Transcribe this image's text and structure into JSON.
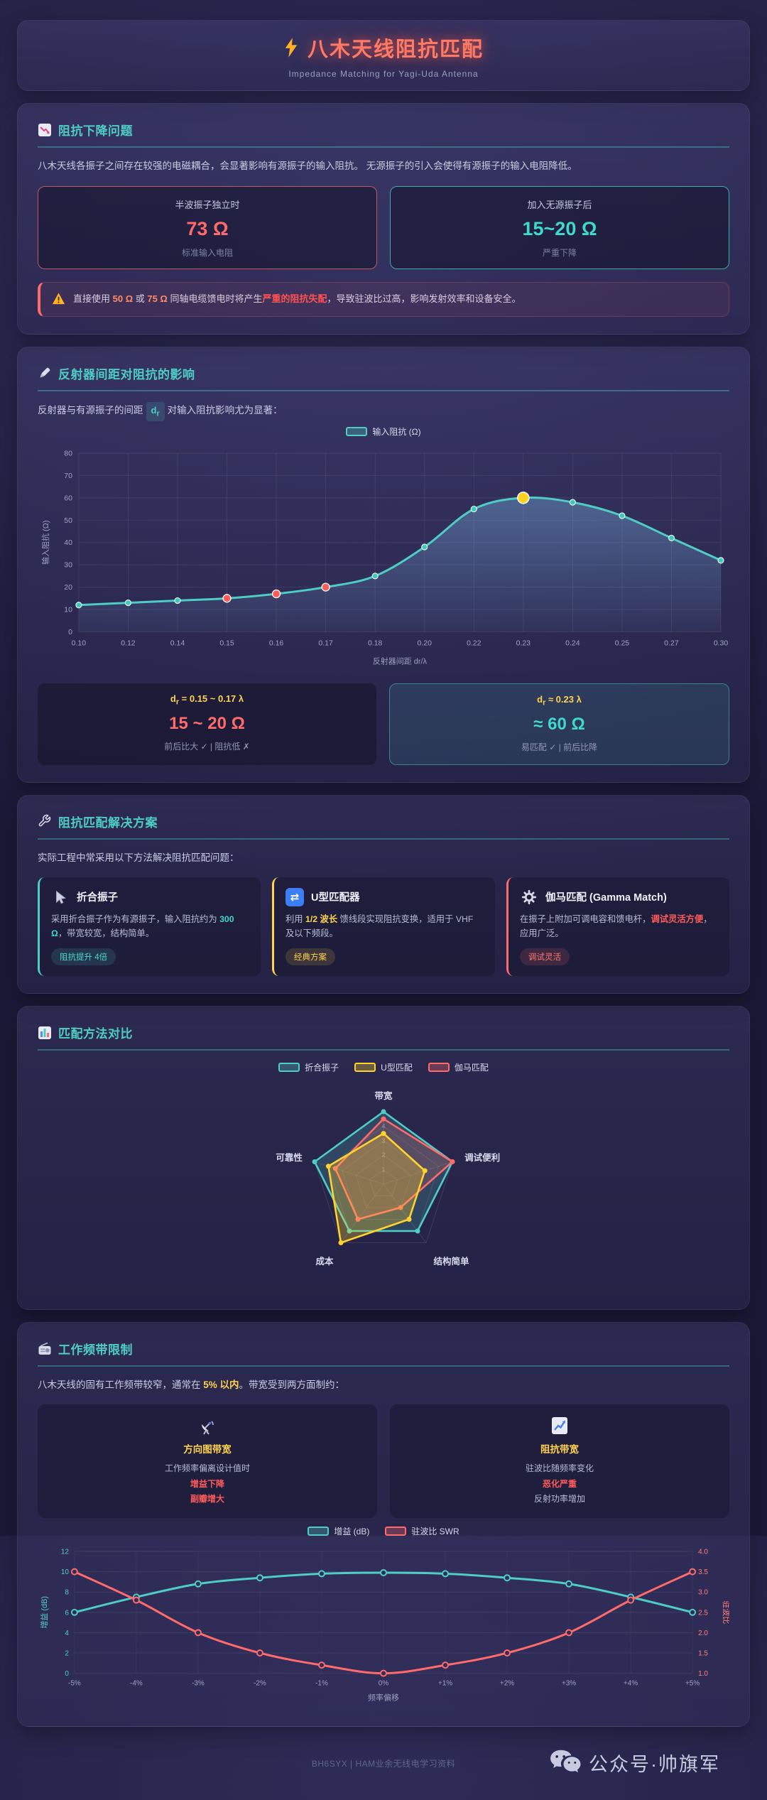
{
  "palette": {
    "teal": "#4ecdc4",
    "red": "#ff6b6b",
    "yellow": "#ffd34d",
    "orange": "#ff9f43",
    "blue": "#3d7ef5",
    "title": "#ff7a66"
  },
  "header": {
    "title": "八木天线阻抗匹配",
    "subtitle": "Impedance Matching for Yagi-Uda Antenna"
  },
  "section1": {
    "title": "阻抗下降问题",
    "intro": "八木天线各振子之间存在较强的电磁耦合，会显著影响有源振子的输入阻抗。 无源振子的引入会使得有源振子的输入电阻降低。",
    "stats": [
      {
        "label": "半波振子独立时",
        "value": "73 Ω",
        "note": "标准输入电阻"
      },
      {
        "label": "加入无源振子后",
        "value": "15~20 Ω",
        "note": "严重下降"
      }
    ],
    "warning": {
      "pre": "直接使用 ",
      "v1": "50 Ω",
      "mid1": " 或 ",
      "v2": "75 Ω",
      "mid2": " 同轴电缆馈电时将产生",
      "strong": "严重的阻抗失配",
      "post": "，导致驻波比过高，影响发射效率和设备安全。"
    }
  },
  "section2": {
    "title": "反射器间距对阻抗的影响",
    "intro_pre": "反射器与有源振子的间距",
    "chip": {
      "main": "d",
      "sub": "r"
    },
    "intro_post": "对输入阻抗影响尤为显著：",
    "results": [
      {
        "sym": "d",
        "sub": "r",
        "rest": " = 0.15 ~ 0.17 λ",
        "value": "15 ~ 20 Ω",
        "note": "前后比大 ✓ | 阻抗低 ✗"
      },
      {
        "sym": "d",
        "sub": "r",
        "rest": " ≈ 0.23 λ",
        "value": "≈ 60 Ω",
        "note": "易匹配 ✓ | 前后比降"
      }
    ]
  },
  "section3": {
    "title": "阻抗匹配解决方案",
    "intro": "实际工程中常采用以下方法解决阻抗匹配问题：",
    "methods": [
      {
        "title": "折合振子",
        "pre": "采用折合振子作为有源振子，输入阻抗约为 ",
        "strong": "300 Ω",
        "post": "，带宽较宽，结构简单。",
        "badge": "阻抗提升 4倍"
      },
      {
        "title": "U型匹配器",
        "pre": "利用 ",
        "strong": "1/2 波长",
        "post": " 馈线段实现阻抗变换，适用于 VHF 及以下频段。",
        "badge": "经典方案"
      },
      {
        "title": "伽马匹配 (Gamma Match)",
        "pre": "在振子上附加可调电容和馈电杆，",
        "strong": "调试灵活方便",
        "post": "，应用广泛。",
        "badge": "调试灵活"
      }
    ]
  },
  "section4": {
    "title": "匹配方法对比"
  },
  "section5": {
    "title": "工作频带限制",
    "intro_pre": "八木天线的固有工作频带较窄，通常在 ",
    "intro_strong": "5% 以内",
    "intro_post": "。带宽受到两方面制约：",
    "boxes": [
      {
        "title": "方向图带宽",
        "line1": "工作频率偏离设计值时",
        "line2": "增益下降",
        "line3": "副瓣增大"
      },
      {
        "title": "阻抗带宽",
        "line1": "驻波比随频率变化",
        "line2": "恶化严重",
        "line3": "反射功率增加"
      }
    ]
  },
  "footer": {
    "credit": "BH6SYX | HAM业余无线电学习资料",
    "wechat": "公众号·帅旗军"
  },
  "chart_data": [
    {
      "id": "impedance_vs_spacing",
      "type": "area",
      "legend": "输入阻抗 (Ω)",
      "color": "#4ecdc4",
      "x": [
        "0.10",
        "0.12",
        "0.14",
        "0.15",
        "0.16",
        "0.17",
        "0.18",
        "0.20",
        "0.22",
        "0.23",
        "0.24",
        "0.25",
        "0.27",
        "0.30"
      ],
      "values": [
        12,
        13,
        14,
        15,
        17,
        20,
        25,
        38,
        55,
        60,
        58,
        52,
        42,
        32
      ],
      "highlight_red": [
        "0.15",
        "0.16",
        "0.17"
      ],
      "highlight_yellow": [
        "0.23"
      ],
      "xlabel": "反射器间距 dr/λ",
      "ylabel": "输入阻抗 (Ω)",
      "ylim": [
        0,
        80
      ],
      "yticks": [
        0,
        10,
        20,
        30,
        40,
        50,
        60,
        70,
        80
      ],
      "grid": true
    },
    {
      "id": "method_radar",
      "type": "radar",
      "max": 5,
      "axes": [
        "带宽",
        "调试便利",
        "结构简单",
        "成本",
        "可靠性"
      ],
      "rings": [
        1,
        2,
        3,
        4,
        5
      ],
      "series": [
        {
          "name": "折合振子",
          "color": "#4ecdc4",
          "values": [
            5,
            5,
            4,
            4,
            5
          ]
        },
        {
          "name": "U型匹配",
          "color": "#ffd32c",
          "values": [
            3.5,
            3,
            3,
            5,
            4
          ]
        },
        {
          "name": "伽马匹配",
          "color": "#ff6b6b",
          "values": [
            4.5,
            5,
            2,
            3,
            3.5
          ]
        }
      ]
    },
    {
      "id": "bandwidth_curves",
      "type": "line",
      "x": [
        "-5%",
        "-4%",
        "-3%",
        "-2%",
        "-1%",
        "0%",
        "+1%",
        "+2%",
        "+3%",
        "+4%",
        "+5%"
      ],
      "series": [
        {
          "name": "增益 (dB)",
          "axis": "left",
          "color": "#4ecdc4",
          "values": [
            6,
            7.5,
            8.8,
            9.4,
            9.8,
            9.9,
            9.8,
            9.4,
            8.8,
            7.5,
            6
          ]
        },
        {
          "name": "驻波比 SWR",
          "axis": "right",
          "color": "#ff6b6b",
          "values": [
            3.5,
            2.8,
            2.0,
            1.5,
            1.2,
            1.0,
            1.2,
            1.5,
            2.0,
            2.8,
            3.5
          ]
        }
      ],
      "left": {
        "label": "增益 (dB)",
        "lim": [
          0,
          12
        ],
        "ticks": [
          0,
          2,
          4,
          6,
          8,
          10,
          12
        ]
      },
      "right": {
        "label": "驻波比",
        "lim": [
          1,
          4
        ],
        "ticks": [
          1.0,
          1.5,
          2.0,
          2.5,
          3.0,
          3.5,
          4.0
        ]
      },
      "xlabel": "频率偏移",
      "grid": true
    }
  ]
}
